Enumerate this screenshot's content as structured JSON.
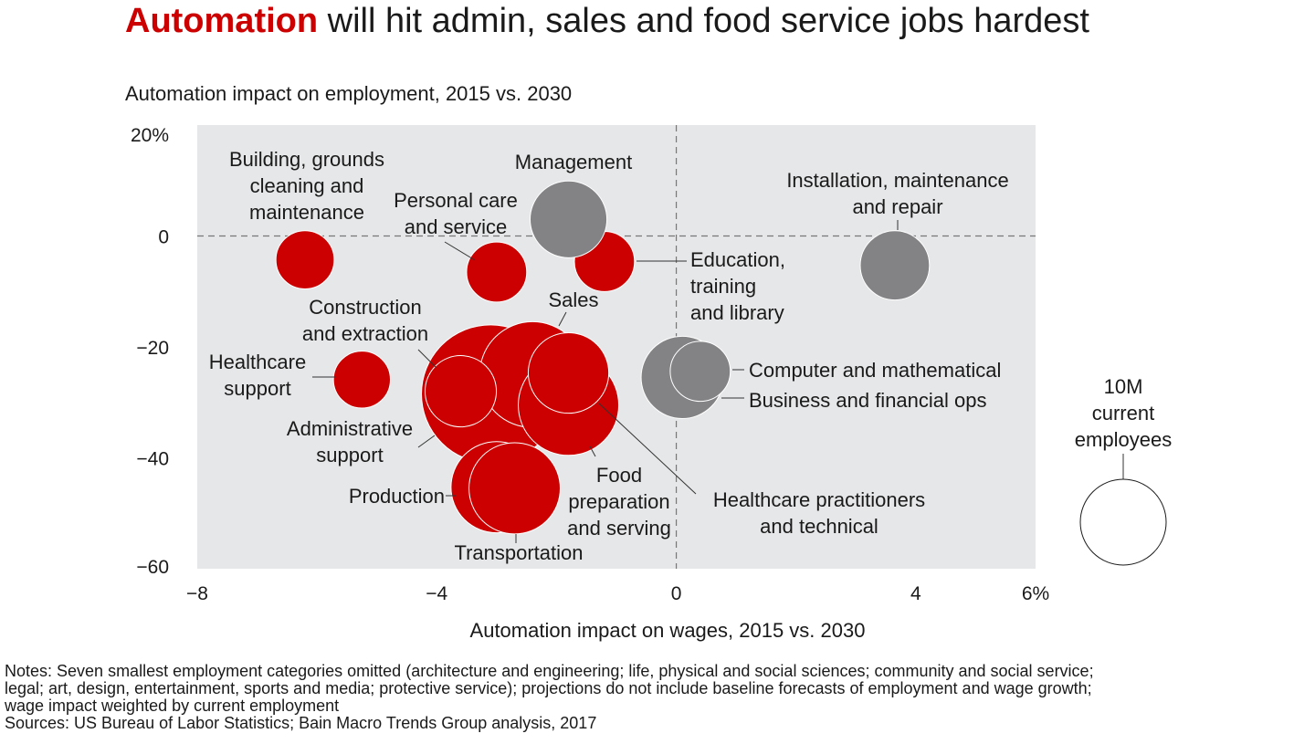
{
  "title": {
    "highlight": "Automation",
    "rest": " will hit admin, sales and food service jobs hardest"
  },
  "colors": {
    "accent": "#cc0000",
    "gray": "#838386",
    "plot_bg": "#e6e7e8"
  },
  "chart_data": {
    "type": "scatter",
    "subtype": "bubble",
    "ylabel": "Automation impact on employment, 2015 vs. 2030",
    "xlabel": "Automation impact on wages, 2015 vs. 2030",
    "xlim": [
      -8,
      6
    ],
    "ylim": [
      -60,
      20
    ],
    "x_ticks": [
      "−8",
      "−4",
      "0",
      "4",
      "6%"
    ],
    "x_tick_values": [
      -8,
      -4,
      0,
      4,
      6
    ],
    "y_ticks": [
      "20%",
      "0",
      "−20",
      "−40",
      "−60"
    ],
    "y_tick_values": [
      20,
      0,
      -20,
      -40,
      -60
    ],
    "grid": false,
    "reference_lines": {
      "x": 0,
      "y": 0
    },
    "size_unit": "million current employees",
    "size_legend": {
      "value": 10,
      "lines": [
        "10M",
        "current",
        "employees"
      ],
      "placement": "right"
    },
    "points": [
      {
        "name": "Administrative support",
        "lines": [
          "Administrative",
          "support"
        ],
        "x": -3.1,
        "y": -28.5,
        "size": 26,
        "color": "red"
      },
      {
        "name": "Sales",
        "lines": [
          "Sales"
        ],
        "x": -2.4,
        "y": -25,
        "size": 15.2,
        "color": "red"
      },
      {
        "name": "Construction and extraction",
        "lines": [
          "Construction",
          "and extraction"
        ],
        "x": -3.6,
        "y": -28,
        "size": 6.9,
        "color": "red"
      },
      {
        "name": "Food preparation and serving",
        "lines": [
          "Food",
          "preparation",
          "and serving"
        ],
        "x": -1.8,
        "y": -30.5,
        "size": 13.7,
        "color": "red"
      },
      {
        "name": "Healthcare practitioners and technical",
        "lines": [
          "Healthcare practitioners",
          "and technical"
        ],
        "x": -1.8,
        "y": -24.7,
        "size": 8.8,
        "color": "red"
      },
      {
        "name": "Production",
        "lines": [
          "Production"
        ],
        "x": -3.0,
        "y": -45.3,
        "size": 11.3,
        "color": "red"
      },
      {
        "name": "Transportation",
        "lines": [
          "Transportation"
        ],
        "x": -2.7,
        "y": -45.5,
        "size": 11.3,
        "color": "red"
      },
      {
        "name": "Building, grounds cleaning and maintenance",
        "lines": [
          "Building, grounds",
          "cleaning and",
          "maintenance"
        ],
        "x": -6.2,
        "y": -4.3,
        "size": 4.6,
        "color": "red"
      },
      {
        "name": "Personal care and service",
        "lines": [
          "Personal care",
          "and service"
        ],
        "x": -3.0,
        "y": -6.5,
        "size": 4.9,
        "color": "red"
      },
      {
        "name": "Education, training and library",
        "lines": [
          "Education,",
          "training",
          "and library"
        ],
        "x": -1.2,
        "y": -4.6,
        "size": 4.9,
        "color": "red"
      },
      {
        "name": "Healthcare support",
        "lines": [
          "Healthcare",
          "support"
        ],
        "x": -5.25,
        "y": -25.9,
        "size": 4.4,
        "color": "red"
      },
      {
        "name": "Management",
        "lines": [
          "Management"
        ],
        "x": -1.8,
        "y": 3,
        "size": 8.0,
        "color": "gray"
      },
      {
        "name": "Installation, maintenance and repair",
        "lines": [
          "Installation, maintenance",
          "and repair"
        ],
        "x": 3.65,
        "y": -5.3,
        "size": 6.5,
        "color": "gray"
      },
      {
        "name": "Business and financial ops",
        "lines": [
          "Business and financial ops"
        ],
        "x": 0.1,
        "y": -25.5,
        "size": 9.2,
        "color": "gray"
      },
      {
        "name": "Computer and mathematical",
        "lines": [
          "Computer and mathematical"
        ],
        "x": 0.4,
        "y": -24.4,
        "size": 4.9,
        "color": "gray"
      }
    ]
  },
  "notes": [
    "Notes: Seven smallest employment categories omitted (architecture and engineering; life, physical and social sciences; community and social service;",
    "legal; art, design, entertainment, sports and media; protective service); projections do not include baseline forecasts of employment and wage growth;",
    "wage impact weighted by current employment",
    "Sources: US Bureau of Labor Statistics; Bain Macro Trends Group analysis, 2017"
  ]
}
